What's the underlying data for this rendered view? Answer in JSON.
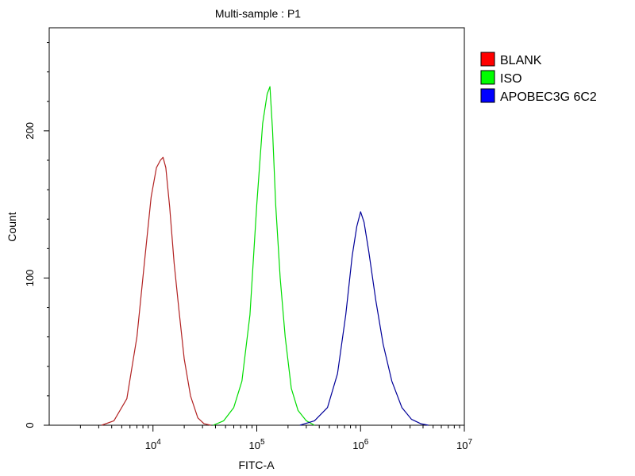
{
  "chart_data": {
    "type": "line",
    "title": "Multi-sample : P1",
    "xlabel": "FITC-A",
    "ylabel": "Count",
    "x_scale": "log",
    "xlim": [
      1000,
      10000000
    ],
    "ylim": [
      0,
      270
    ],
    "x_ticks": [
      {
        "value": 10000,
        "base": "10",
        "exp": "4"
      },
      {
        "value": 100000,
        "base": "10",
        "exp": "5"
      },
      {
        "value": 1000000,
        "base": "10",
        "exp": "6"
      },
      {
        "value": 10000000,
        "base": "10",
        "exp": "7"
      }
    ],
    "y_ticks": [
      {
        "value": 0,
        "label": "0"
      },
      {
        "value": 100,
        "label": "100"
      },
      {
        "value": 200,
        "label": "200"
      }
    ],
    "legend_position": "right",
    "series": [
      {
        "name": "BLANK",
        "color": "#b22222",
        "swatch": "#ff0000",
        "x": [
          3200,
          4200,
          5600,
          7000,
          8400,
          9600,
          10800,
          11800,
          12500,
          13300,
          14500,
          16000,
          17800,
          20000,
          23000,
          27000,
          31000,
          36000
        ],
        "y": [
          0,
          3,
          18,
          60,
          115,
          155,
          175,
          180,
          182,
          175,
          148,
          110,
          78,
          45,
          20,
          5,
          1,
          0
        ]
      },
      {
        "name": "ISO",
        "color": "#00dd00",
        "swatch": "#00ff00",
        "x": [
          38000,
          48000,
          60000,
          72000,
          86000,
          100000,
          114000,
          126000,
          134000,
          142000,
          152000,
          168000,
          188000,
          215000,
          250000,
          300000,
          360000
        ],
        "y": [
          0,
          3,
          12,
          30,
          75,
          150,
          205,
          225,
          230,
          200,
          150,
          100,
          60,
          25,
          10,
          3,
          0
        ]
      },
      {
        "name": "APOBEC3G 6C2",
        "color": "#000099",
        "swatch": "#0000ff",
        "x": [
          260000,
          360000,
          480000,
          600000,
          720000,
          830000,
          920000,
          1000000,
          1080000,
          1200000,
          1400000,
          1650000,
          2000000,
          2500000,
          3100000,
          3800000,
          4500000
        ],
        "y": [
          0,
          3,
          12,
          35,
          75,
          115,
          135,
          145,
          138,
          118,
          85,
          55,
          30,
          12,
          4,
          1,
          0
        ]
      }
    ]
  }
}
